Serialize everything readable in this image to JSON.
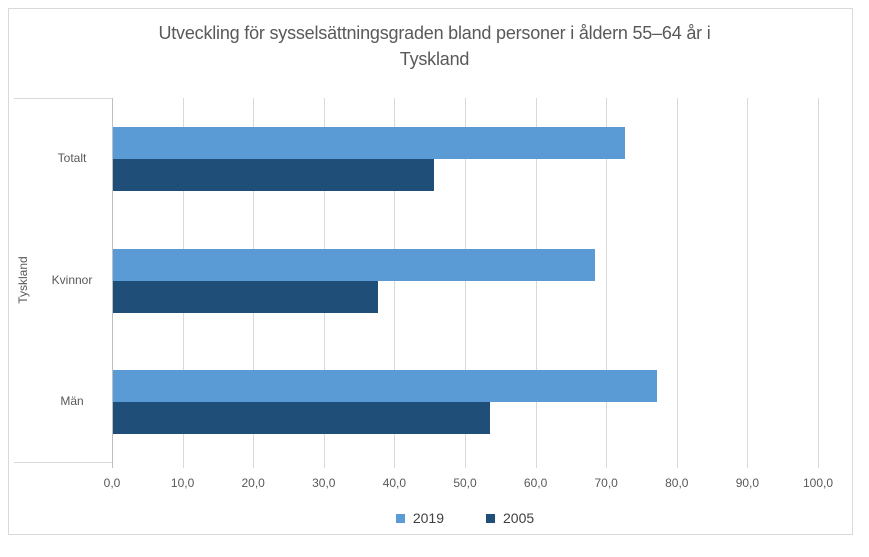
{
  "chart_data": {
    "type": "bar",
    "orientation": "horizontal",
    "title": "Utveckling för sysselsättningsgraden bland personer i åldern 55–64 år i Tyskland",
    "title_lines": [
      "Utveckling för sysselsättningsgraden bland personer i åldern 55–64 år i",
      "Tyskland"
    ],
    "axis_group_label": "Tyskland",
    "categories": [
      "Totalt",
      "Kvinnor",
      "Män"
    ],
    "series": [
      {
        "name": "2019",
        "color": "#5B9BD5",
        "values": [
          72.5,
          68.3,
          77.1
        ]
      },
      {
        "name": "2005",
        "color": "#1F4E79",
        "values": [
          45.5,
          37.5,
          53.4
        ]
      }
    ],
    "xlim": [
      0,
      100
    ],
    "x_tick_step": 10,
    "x_tick_labels": [
      "0,0",
      "10,0",
      "20,0",
      "30,0",
      "40,0",
      "50,0",
      "60,0",
      "70,0",
      "80,0",
      "90,0",
      "100,0"
    ],
    "grid": true,
    "legend_position": "bottom",
    "colors": {
      "series_2019": "#5B9BD5",
      "series_2005": "#1F4E79",
      "gridline": "#D9D9D9",
      "axis_line": "#BFBFBF",
      "axis_text": "#595959",
      "legend_text": "#404040",
      "frame_border": "#D9D9D9"
    }
  }
}
